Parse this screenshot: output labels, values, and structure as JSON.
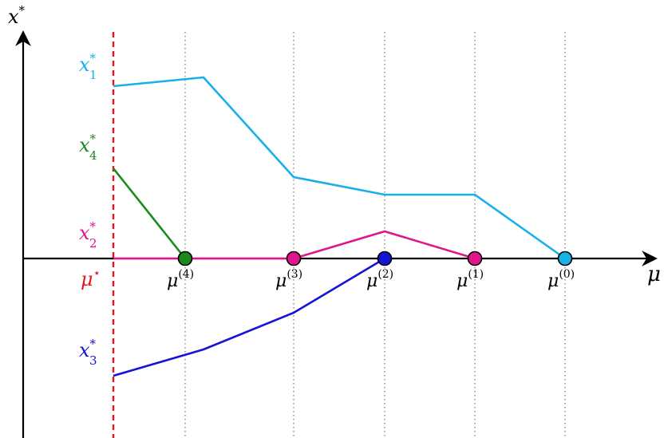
{
  "axes": {
    "y_label": "x",
    "y_label_sup": "*",
    "x_label": "μ"
  },
  "threshold": {
    "label": "μ",
    "label_sup": "⋆",
    "color": "#e4151f"
  },
  "breakpoints": [
    {
      "label": "μ",
      "sup": "(4)"
    },
    {
      "label": "μ",
      "sup": "(3)"
    },
    {
      "label": "μ",
      "sup": "(2)"
    },
    {
      "label": "μ",
      "sup": "(1)"
    },
    {
      "label": "μ",
      "sup": "(0)"
    }
  ],
  "series": [
    {
      "label": "x",
      "sub": "1",
      "sup": "*",
      "color": "#18b0e8"
    },
    {
      "label": "x",
      "sub": "4",
      "sup": "*",
      "color": "#1a8a1a"
    },
    {
      "label": "x",
      "sub": "2",
      "sup": "*",
      "color": "#e0168c"
    },
    {
      "label": "x",
      "sub": "3",
      "sup": "*",
      "color": "#1414d6"
    }
  ],
  "markers": [
    {
      "color": "#1a8a1a"
    },
    {
      "color": "#e0168c"
    },
    {
      "color": "#1414d6"
    },
    {
      "color": "#e0168c"
    },
    {
      "color": "#18b0e8"
    }
  ]
}
